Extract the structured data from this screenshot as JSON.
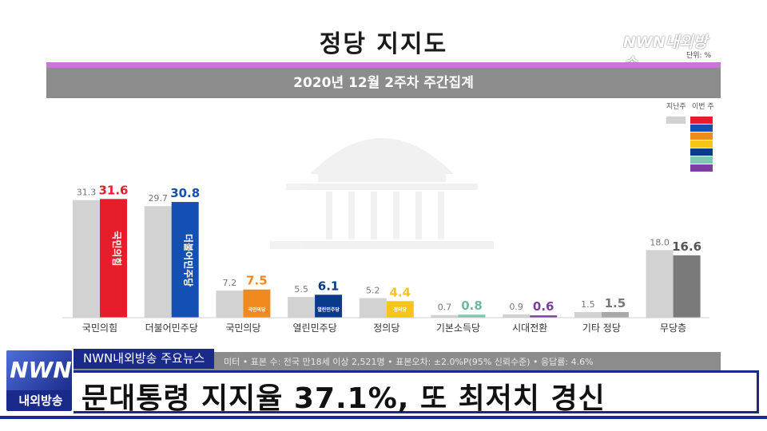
{
  "chart": {
    "title": "정당 지지도",
    "unit": "단위: %",
    "period": "2020년 12월 2주차 주간집계",
    "legend": {
      "last_week": "지난주",
      "this_week": "이번 주"
    },
    "footnote": "미터 • 표본 수: 전국 만18세 이상 2,521명 • 표본오차: ±2.0%P(95% 신뢰수준) • 응답률: 4.6%"
  },
  "chart_data": {
    "type": "bar",
    "title": "정당 지지도",
    "categories": [
      "국민의힘",
      "더불어민주당",
      "국민의당",
      "열린민주당",
      "정의당",
      "기본소득당",
      "시대전환",
      "기타 정당",
      "무당층"
    ],
    "series": [
      {
        "name": "지난주",
        "values": [
          31.3,
          29.7,
          7.2,
          5.5,
          5.2,
          0.7,
          0.9,
          1.5,
          18.0
        ]
      },
      {
        "name": "이번 주",
        "values": [
          31.6,
          30.8,
          7.5,
          6.1,
          4.4,
          0.8,
          0.6,
          1.5,
          16.6
        ]
      }
    ],
    "value_labels_last": [
      "31.3",
      "29.7",
      "7.2",
      "5.5",
      "5.2",
      "0.7",
      "0.9",
      "1.5",
      "18.0"
    ],
    "value_labels_current": [
      "31.6",
      "30.8",
      "7.5",
      "6.1",
      "4.4",
      "0.8",
      "0.6",
      "1.5",
      "16.6"
    ],
    "bar_inner_labels": [
      "국민의힘",
      "더불어민주당",
      "국민의당",
      "열린민주당",
      "정의당"
    ],
    "colors_current": [
      "#e61e2b",
      "#1450b4",
      "#f08a1e",
      "#0a3a8a",
      "#f5c518",
      "#7fc8b0",
      "#7a3fa0",
      "#a8a8a8",
      "#7a7a7a"
    ],
    "label_colors_current": [
      "#e61e2b",
      "#1450b4",
      "#f08a1e",
      "#0a3a8a",
      "#f5c518",
      "#6fb8a0",
      "#7a3fa0",
      "#777777",
      "#555555"
    ],
    "color_last": "#d2d2d2",
    "ylim": [
      0,
      34
    ],
    "legend_position": "top-right"
  },
  "legend_colors": [
    "#e61e2b",
    "#1450b4",
    "#f08a1e",
    "#f5c518",
    "#0a3a8a",
    "#7fc8b0",
    "#7a3fa0"
  ],
  "overlay": {
    "watermark": "NWN내외방송",
    "logo_main": "NWN",
    "logo_sub": "내외방송",
    "news_tag": "NWN내외방송 주요뉴스",
    "headline": "문대통령 지지율 37.1%, 또 최저치 경신"
  }
}
